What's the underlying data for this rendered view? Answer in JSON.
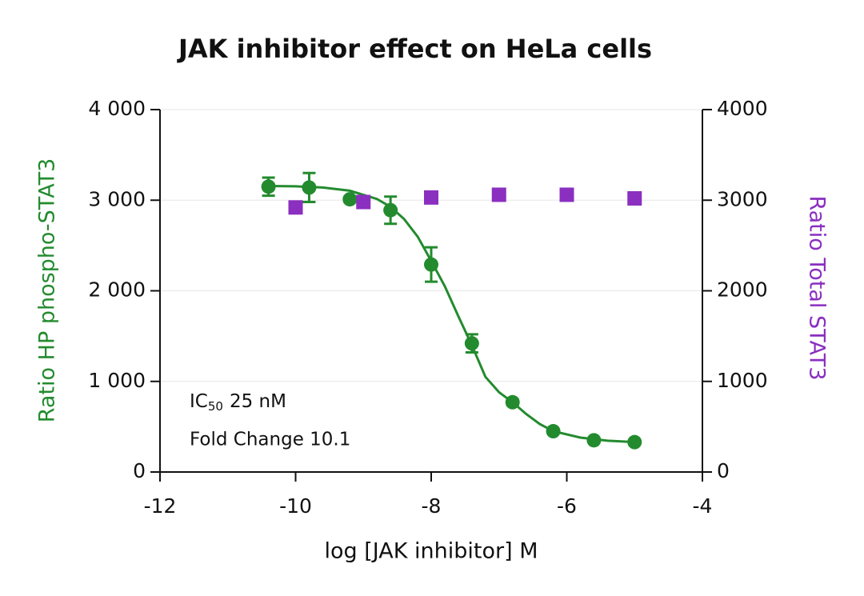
{
  "chart_data": {
    "type": "scatter",
    "title": "JAK inhibitor effect on HeLa cells",
    "x_label": "log [JAK inhibitor] M",
    "y_label": "Ratio HP phospho-STAT3",
    "y2_label": "Ratio Total STAT3",
    "xlim": [
      -12,
      -4
    ],
    "xticks": [
      -12,
      -10,
      -8,
      -6,
      -4
    ],
    "ylim": [
      0,
      4000
    ],
    "yticks": [
      0,
      {
        "value": 1000,
        "label": "1 000"
      },
      {
        "value": 2000,
        "label": "2 000"
      },
      {
        "value": 3000,
        "label": "3 000"
      },
      {
        "value": 4000,
        "label": "4 000"
      }
    ],
    "y2lim": [
      0,
      4000
    ],
    "y2ticks": [
      0,
      1000,
      2000,
      3000,
      4000
    ],
    "grid": true,
    "annotations": [
      {
        "text": "IC",
        "subscript": "50",
        "after": "25 nM"
      },
      {
        "text": "Fold Change 10.1"
      }
    ],
    "series": [
      {
        "color": "#238b2e",
        "marker": "circle",
        "x": [
          -10.4,
          -9.8,
          -9.2,
          -8.6,
          -8.0,
          -7.4,
          -6.8,
          -6.2,
          -5.6,
          -5.0
        ],
        "values": [
          3150,
          3140,
          3010,
          2890,
          2290,
          1420,
          770,
          450,
          350,
          330
        ],
        "errors": [
          100,
          160,
          30,
          150,
          190,
          100,
          30,
          20,
          20,
          20
        ]
      },
      {
        "color": "#8a2fbf",
        "marker": "square",
        "axis": "y2",
        "x": [
          -10,
          -9,
          -8,
          -7,
          -6,
          -5
        ],
        "values": [
          2920,
          2980,
          3030,
          3060,
          3060,
          3020
        ]
      }
    ],
    "curve": {
      "color": "#238b2e",
      "x": [
        -10.4,
        -10,
        -9.6,
        -9.2,
        -8.8,
        -8.6,
        -8.4,
        -8.2,
        -8.0,
        -7.8,
        -7.6,
        -7.4,
        -7.2,
        -7.0,
        -6.8,
        -6.6,
        -6.4,
        -6.2,
        -5.8,
        -5.4,
        -5.0
      ],
      "values": [
        3157,
        3153,
        3140,
        3105,
        3014,
        2926,
        2792,
        2598,
        2330,
        2050,
        1720,
        1400,
        1050,
        880,
        770,
        640,
        530,
        450,
        380,
        345,
        330
      ]
    }
  }
}
